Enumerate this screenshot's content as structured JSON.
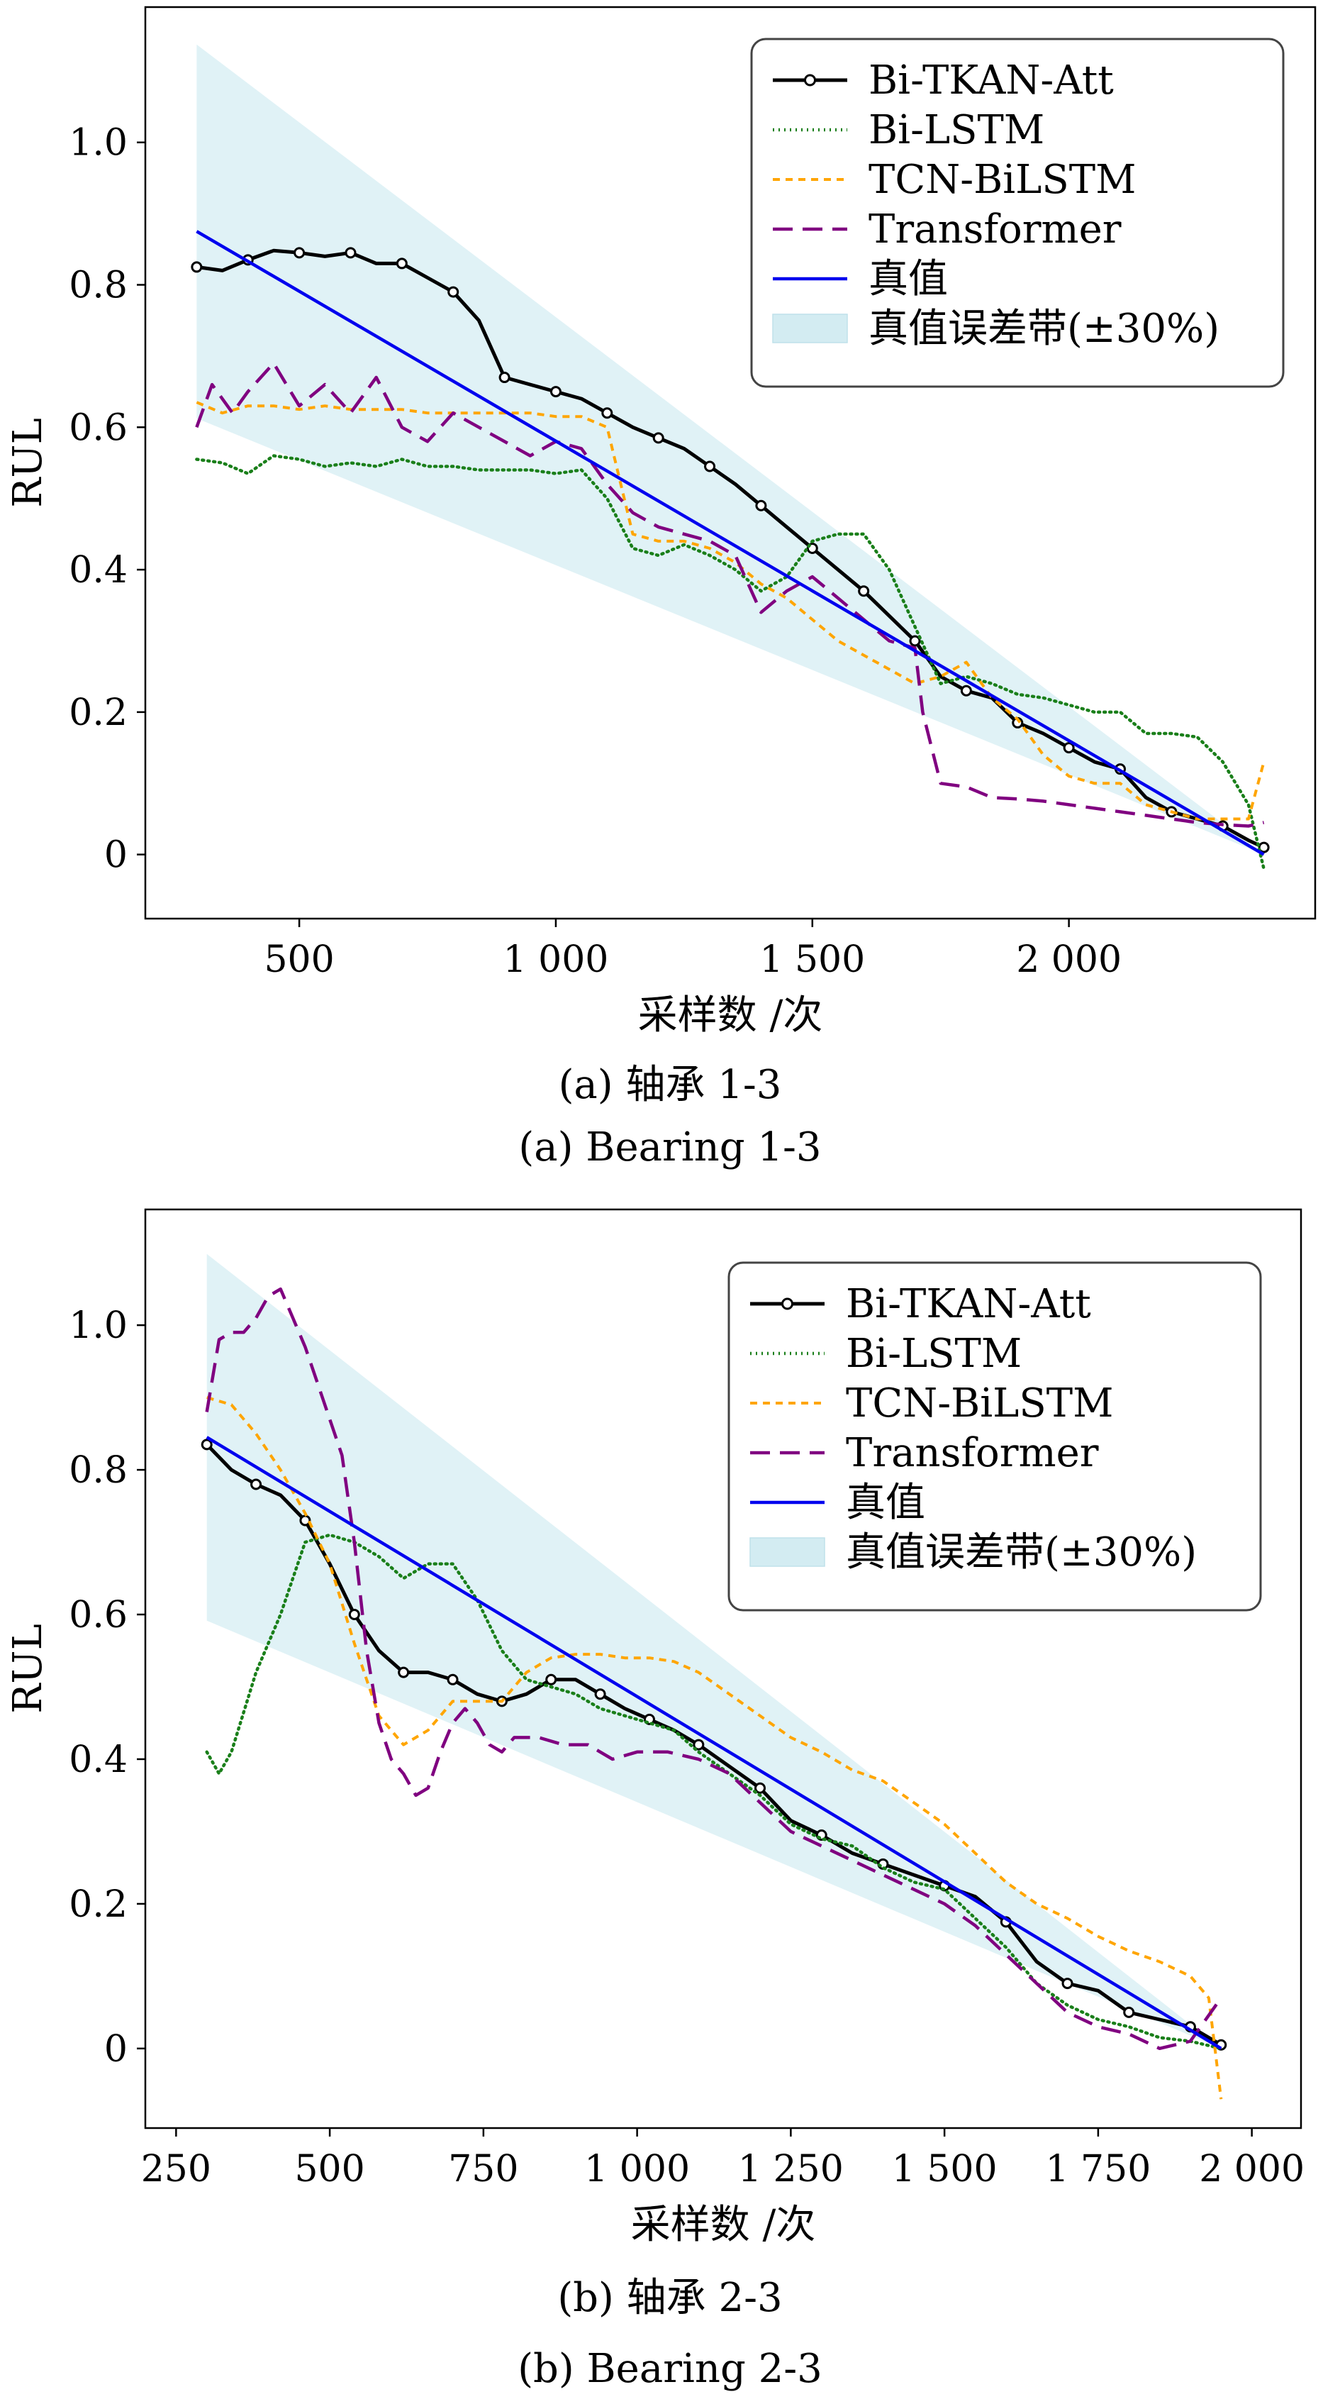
{
  "colors": {
    "bi_tkan_att": "#000000",
    "bi_lstm": "#1a7f1a",
    "tcn_bilstm": "#ffa500",
    "transformer": "#800080",
    "true_value": "#0000ee",
    "error_band": "#d3ecf2"
  },
  "chart_data": [
    {
      "type": "line",
      "xlabel": "采样数 /次",
      "ylabel": "RUL",
      "xlim": [
        200,
        2480
      ],
      "ylim": [
        -0.09,
        1.19
      ],
      "xticks": [
        500,
        1000,
        1500,
        2000
      ],
      "xtick_labels": [
        "500",
        "1 000",
        "1 500",
        "2 000"
      ],
      "yticks": [
        0,
        0.2,
        0.4,
        0.6,
        0.8,
        1.0
      ],
      "ytick_labels": [
        "0",
        "0.2",
        "0.4",
        "0.6",
        "0.8",
        "1.0"
      ],
      "caption_cn": "(a) 轴承 1-3",
      "caption_en": "(a) Bearing 1-3",
      "legend_position": "top-right",
      "error_band": {
        "label": "真值误差带(±30%)",
        "pct": 0.3,
        "x": [
          300,
          2380
        ],
        "y_true": [
          0.875,
          0.0
        ]
      },
      "series": [
        {
          "name": "Bi-TKAN-Att",
          "style": "solid-marker",
          "x": [
            300,
            350,
            400,
            450,
            500,
            550,
            600,
            650,
            700,
            750,
            800,
            850,
            900,
            950,
            1000,
            1050,
            1100,
            1150,
            1200,
            1250,
            1300,
            1350,
            1400,
            1450,
            1500,
            1550,
            1600,
            1650,
            1700,
            1750,
            1800,
            1850,
            1900,
            1950,
            2000,
            2050,
            2100,
            2150,
            2200,
            2250,
            2300,
            2350,
            2380
          ],
          "y": [
            0.825,
            0.82,
            0.835,
            0.848,
            0.845,
            0.84,
            0.845,
            0.83,
            0.83,
            0.81,
            0.79,
            0.75,
            0.67,
            0.66,
            0.65,
            0.64,
            0.62,
            0.6,
            0.585,
            0.57,
            0.545,
            0.52,
            0.49,
            0.46,
            0.43,
            0.4,
            0.37,
            0.335,
            0.3,
            0.25,
            0.23,
            0.22,
            0.185,
            0.17,
            0.15,
            0.13,
            0.12,
            0.08,
            0.06,
            0.05,
            0.04,
            0.02,
            0.01
          ]
        },
        {
          "name": "Bi-LSTM",
          "style": "dotted",
          "x": [
            300,
            350,
            400,
            450,
            500,
            550,
            600,
            650,
            700,
            750,
            800,
            850,
            900,
            950,
            1000,
            1050,
            1100,
            1150,
            1200,
            1250,
            1300,
            1350,
            1400,
            1450,
            1500,
            1550,
            1600,
            1650,
            1700,
            1750,
            1800,
            1850,
            1900,
            1950,
            2000,
            2050,
            2100,
            2150,
            2200,
            2250,
            2300,
            2350,
            2380
          ],
          "y": [
            0.555,
            0.55,
            0.535,
            0.56,
            0.555,
            0.545,
            0.55,
            0.545,
            0.555,
            0.545,
            0.545,
            0.54,
            0.54,
            0.54,
            0.535,
            0.54,
            0.5,
            0.43,
            0.42,
            0.435,
            0.42,
            0.4,
            0.37,
            0.39,
            0.44,
            0.45,
            0.45,
            0.4,
            0.32,
            0.24,
            0.25,
            0.24,
            0.225,
            0.22,
            0.21,
            0.2,
            0.2,
            0.17,
            0.17,
            0.165,
            0.13,
            0.07,
            -0.02
          ]
        },
        {
          "name": "TCN-BiLSTM",
          "style": "dashed",
          "x": [
            300,
            350,
            400,
            450,
            500,
            550,
            600,
            650,
            700,
            750,
            800,
            850,
            900,
            950,
            1000,
            1050,
            1100,
            1150,
            1200,
            1250,
            1300,
            1350,
            1400,
            1450,
            1500,
            1550,
            1600,
            1650,
            1700,
            1750,
            1800,
            1850,
            1900,
            1950,
            2000,
            2050,
            2100,
            2150,
            2200,
            2250,
            2300,
            2350,
            2380
          ],
          "y": [
            0.635,
            0.62,
            0.63,
            0.63,
            0.625,
            0.63,
            0.625,
            0.625,
            0.625,
            0.62,
            0.62,
            0.62,
            0.62,
            0.62,
            0.615,
            0.615,
            0.6,
            0.45,
            0.44,
            0.44,
            0.43,
            0.41,
            0.38,
            0.36,
            0.33,
            0.3,
            0.28,
            0.26,
            0.24,
            0.25,
            0.27,
            0.22,
            0.19,
            0.14,
            0.11,
            0.1,
            0.1,
            0.07,
            0.06,
            0.05,
            0.05,
            0.05,
            0.13
          ]
        },
        {
          "name": "Transformer",
          "style": "long-dashed",
          "x": [
            300,
            330,
            370,
            400,
            450,
            500,
            550,
            600,
            650,
            700,
            750,
            800,
            850,
            900,
            950,
            1000,
            1050,
            1100,
            1150,
            1200,
            1250,
            1300,
            1350,
            1400,
            1450,
            1500,
            1550,
            1600,
            1650,
            1700,
            1715,
            1750,
            1800,
            1850,
            1900,
            1950,
            2000,
            2050,
            2100,
            2150,
            2200,
            2250,
            2300,
            2350,
            2380
          ],
          "y": [
            0.6,
            0.66,
            0.62,
            0.65,
            0.69,
            0.63,
            0.66,
            0.62,
            0.67,
            0.6,
            0.58,
            0.62,
            0.6,
            0.58,
            0.56,
            0.58,
            0.57,
            0.52,
            0.48,
            0.46,
            0.45,
            0.44,
            0.42,
            0.34,
            0.37,
            0.39,
            0.36,
            0.33,
            0.3,
            0.29,
            0.2,
            0.1,
            0.095,
            0.08,
            0.078,
            0.075,
            0.07,
            0.065,
            0.06,
            0.055,
            0.05,
            0.045,
            0.042,
            0.04,
            0.045
          ]
        },
        {
          "name": "真值",
          "style": "solid",
          "x": [
            300,
            2380
          ],
          "y": [
            0.875,
            0.0
          ]
        }
      ]
    },
    {
      "type": "line",
      "xlabel": "采样数 /次",
      "ylabel": "RUL",
      "xlim": [
        200,
        2080
      ],
      "ylim": [
        -0.11,
        1.16
      ],
      "xticks": [
        250,
        500,
        750,
        1000,
        1250,
        1500,
        1750,
        2000
      ],
      "xtick_labels": [
        "250",
        "500",
        "750",
        "1 000",
        "1 250",
        "1 500",
        "1 750",
        "2 000"
      ],
      "yticks": [
        0,
        0.2,
        0.4,
        0.6,
        0.8,
        1.0
      ],
      "ytick_labels": [
        "0",
        "0.2",
        "0.4",
        "0.6",
        "0.8",
        "1.0"
      ],
      "caption_cn": "(b) 轴承 2-3",
      "caption_en": "(b) Bearing 2-3",
      "legend_position": "top-right",
      "error_band": {
        "label": "真值误差带(±30%)",
        "pct": 0.3,
        "x": [
          300,
          1950
        ],
        "y_true": [
          0.845,
          0.0
        ]
      },
      "series": [
        {
          "name": "Bi-TKAN-Att",
          "style": "solid-marker",
          "x": [
            300,
            340,
            380,
            420,
            460,
            500,
            540,
            580,
            620,
            660,
            700,
            740,
            780,
            820,
            860,
            900,
            940,
            980,
            1020,
            1060,
            1100,
            1150,
            1200,
            1250,
            1300,
            1350,
            1400,
            1450,
            1500,
            1550,
            1600,
            1650,
            1700,
            1750,
            1800,
            1850,
            1900,
            1950
          ],
          "y": [
            0.835,
            0.8,
            0.78,
            0.765,
            0.73,
            0.67,
            0.6,
            0.55,
            0.52,
            0.52,
            0.51,
            0.49,
            0.48,
            0.49,
            0.51,
            0.51,
            0.49,
            0.47,
            0.455,
            0.44,
            0.42,
            0.39,
            0.36,
            0.315,
            0.295,
            0.27,
            0.255,
            0.24,
            0.225,
            0.21,
            0.175,
            0.12,
            0.09,
            0.08,
            0.05,
            0.04,
            0.03,
            0.005
          ]
        },
        {
          "name": "Bi-LSTM",
          "style": "dotted",
          "x": [
            300,
            320,
            340,
            380,
            420,
            460,
            500,
            540,
            580,
            620,
            660,
            700,
            740,
            780,
            820,
            860,
            900,
            940,
            980,
            1020,
            1060,
            1100,
            1150,
            1200,
            1250,
            1300,
            1350,
            1400,
            1450,
            1500,
            1550,
            1600,
            1650,
            1700,
            1750,
            1800,
            1850,
            1900,
            1950
          ],
          "y": [
            0.41,
            0.38,
            0.41,
            0.52,
            0.6,
            0.7,
            0.71,
            0.7,
            0.68,
            0.65,
            0.67,
            0.67,
            0.62,
            0.55,
            0.51,
            0.5,
            0.49,
            0.47,
            0.46,
            0.45,
            0.44,
            0.41,
            0.38,
            0.35,
            0.31,
            0.29,
            0.28,
            0.25,
            0.23,
            0.22,
            0.18,
            0.14,
            0.09,
            0.06,
            0.04,
            0.03,
            0.015,
            0.01,
            0.0
          ]
        },
        {
          "name": "TCN-BiLSTM",
          "style": "dashed",
          "x": [
            300,
            340,
            380,
            420,
            460,
            500,
            540,
            580,
            620,
            660,
            700,
            740,
            780,
            820,
            860,
            900,
            940,
            980,
            1020,
            1060,
            1100,
            1150,
            1200,
            1250,
            1300,
            1350,
            1400,
            1450,
            1500,
            1550,
            1600,
            1650,
            1700,
            1750,
            1800,
            1850,
            1900,
            1930,
            1950
          ],
          "y": [
            0.9,
            0.89,
            0.85,
            0.8,
            0.74,
            0.67,
            0.56,
            0.46,
            0.42,
            0.44,
            0.48,
            0.48,
            0.48,
            0.52,
            0.54,
            0.545,
            0.545,
            0.54,
            0.54,
            0.535,
            0.52,
            0.49,
            0.46,
            0.43,
            0.41,
            0.385,
            0.37,
            0.34,
            0.31,
            0.27,
            0.23,
            0.2,
            0.18,
            0.155,
            0.135,
            0.12,
            0.1,
            0.07,
            -0.07
          ]
        },
        {
          "name": "Transformer",
          "style": "long-dashed",
          "x": [
            300,
            320,
            340,
            360,
            380,
            400,
            420,
            440,
            460,
            480,
            500,
            520,
            540,
            560,
            580,
            600,
            620,
            640,
            660,
            680,
            700,
            720,
            740,
            760,
            780,
            800,
            840,
            880,
            920,
            960,
            1000,
            1050,
            1100,
            1150,
            1200,
            1250,
            1300,
            1350,
            1400,
            1450,
            1500,
            1550,
            1600,
            1650,
            1700,
            1750,
            1800,
            1850,
            1900,
            1950
          ],
          "y": [
            0.88,
            0.98,
            0.99,
            0.99,
            1.01,
            1.04,
            1.05,
            1.01,
            0.97,
            0.92,
            0.87,
            0.82,
            0.7,
            0.55,
            0.45,
            0.4,
            0.38,
            0.35,
            0.36,
            0.41,
            0.45,
            0.47,
            0.45,
            0.42,
            0.41,
            0.43,
            0.43,
            0.42,
            0.42,
            0.4,
            0.41,
            0.41,
            0.4,
            0.38,
            0.34,
            0.3,
            0.28,
            0.26,
            0.24,
            0.22,
            0.2,
            0.17,
            0.13,
            0.09,
            0.05,
            0.03,
            0.02,
            0.0,
            0.01,
            0.07
          ]
        },
        {
          "name": "真值",
          "style": "solid",
          "x": [
            300,
            1950
          ],
          "y": [
            0.845,
            0.0
          ]
        }
      ]
    }
  ]
}
